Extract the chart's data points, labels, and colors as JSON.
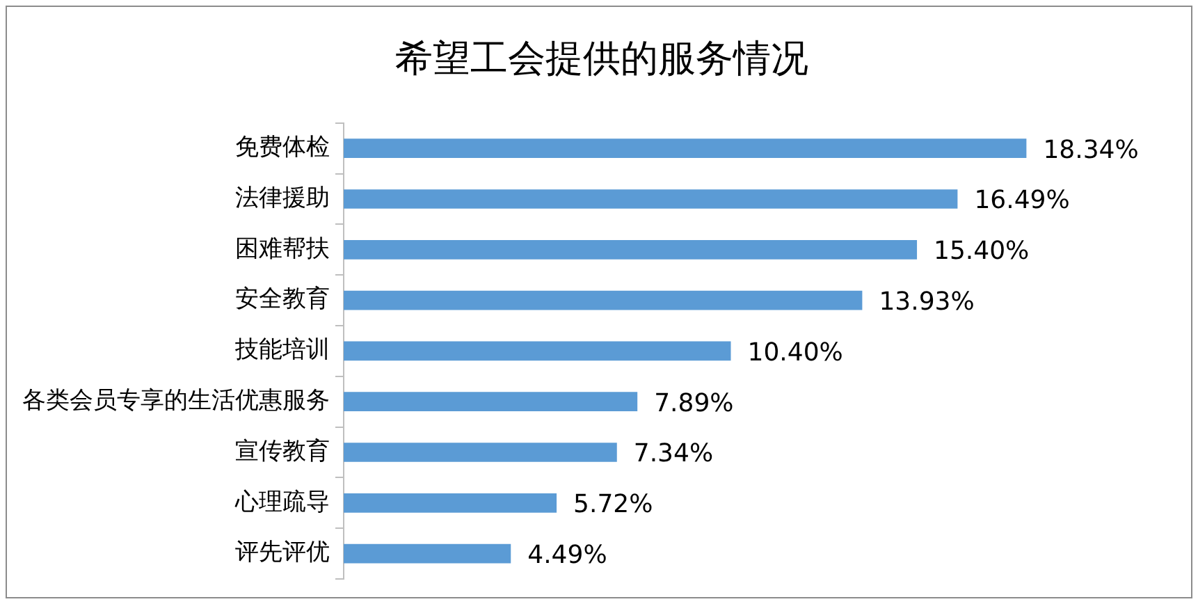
{
  "chart_data": {
    "type": "bar",
    "orientation": "horizontal",
    "tick_labels": "y",
    "title": "希望工会提供的服务情况",
    "categories": [
      "免费体检",
      "法律援助",
      "困难帮扶",
      "安全教育",
      "技能培训",
      "各类会员专享的生活优惠服务",
      "宣传教育",
      "心理疏导",
      "评先评优"
    ],
    "values": [
      18.34,
      16.49,
      15.4,
      13.93,
      10.4,
      7.89,
      7.34,
      5.72,
      4.49
    ],
    "value_labels": [
      "18.34%",
      "16.49%",
      "15.40%",
      "13.93%",
      "10.40%",
      "7.89%",
      "7.34%",
      "5.72%",
      "4.49%"
    ],
    "color": "#5b9bd5",
    "legend": false
  }
}
